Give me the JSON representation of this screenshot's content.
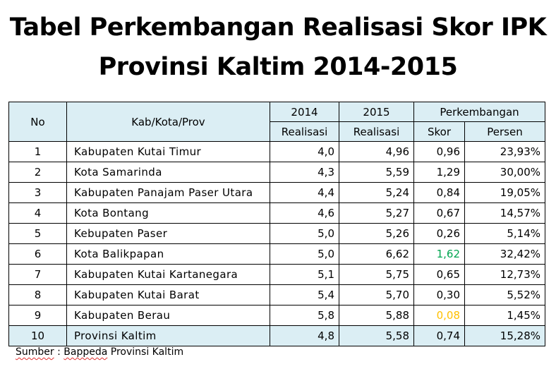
{
  "title": {
    "line1": "Tabel Perkembangan Realisasi Skor IPK",
    "line2": "Provinsi Kaltim 2014-2015"
  },
  "table": {
    "headers": {
      "no": "No",
      "region": "Kab/Kota/Prov",
      "year2014": "2014",
      "year2015": "2015",
      "development": "Perkembangan",
      "realization2014": "Realisasi",
      "realization2015": "Realisasi",
      "score": "Skor",
      "percent": "Persen"
    },
    "rows": [
      {
        "no": "1",
        "region": "Kabupaten Kutai Timur",
        "r2014": "4,0",
        "r2015": "4,96",
        "score": "0,96",
        "percent": "23,93%"
      },
      {
        "no": "2",
        "region": "Kota Samarinda",
        "r2014": "4,3",
        "r2015": "5,59",
        "score": "1,29",
        "percent": "30,00%"
      },
      {
        "no": "3",
        "region": "Kabupaten Panajam Paser Utara",
        "r2014": "4,4",
        "r2015": "5,24",
        "score": "0,84",
        "percent": "19,05%"
      },
      {
        "no": "4",
        "region": "Kota Bontang",
        "r2014": "4,6",
        "r2015": "5,27",
        "score": "0,67",
        "percent": "14,57%"
      },
      {
        "no": "5",
        "region": "Kebupaten Paser",
        "r2014": "5,0",
        "r2015": "5,26",
        "score": "0,26",
        "percent": "5,14%"
      },
      {
        "no": "6",
        "region": "Kota Balikpapan",
        "r2014": "5,0",
        "r2015": "6,62",
        "score": "1,62",
        "percent": "32,42%"
      },
      {
        "no": "7",
        "region": "Kabupaten Kutai Kartanegara",
        "r2014": "5,1",
        "r2015": "5,75",
        "score": "0,65",
        "percent": "12,73%"
      },
      {
        "no": "8",
        "region": "Kabupaten Kutai Barat",
        "r2014": "5,4",
        "r2015": "5,70",
        "score": "0,30",
        "percent": "5,52%"
      },
      {
        "no": "9",
        "region": "Kabupaten Berau",
        "r2014": "5,8",
        "r2015": "5,88",
        "score": "0,08",
        "percent": "1,45%"
      },
      {
        "no": "10",
        "region": "Provinsi Kaltim",
        "r2014": "4,8",
        "r2015": "5,58",
        "score": "0,74",
        "percent": "15,28%"
      }
    ]
  },
  "colors": {
    "header_fill": "#dbeef4",
    "highest_score": "#00a550",
    "lowest_score": "#ffc000"
  },
  "source": {
    "label": "Sumber",
    "separator": " : ",
    "org": "Bappeda",
    "rest": " Provinsi Kaltim"
  }
}
